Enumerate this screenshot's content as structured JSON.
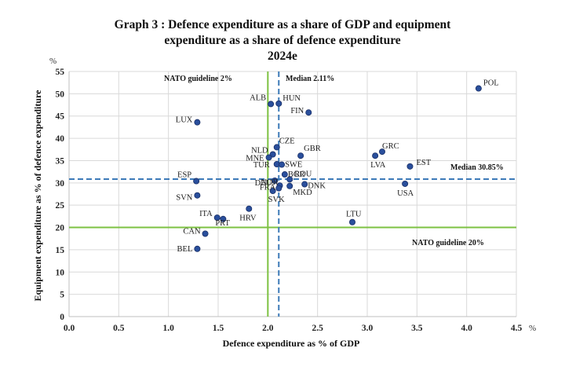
{
  "chart_data": {
    "type": "scatter",
    "title": "Graph 3 : Defence expenditure as a share of GDP and equipment expenditure as a share of defence expenditure",
    "title_lines": [
      "Graph 3 : Defence expenditure as a share of GDP and equipment",
      "expenditure as a share of defence expenditure",
      "2024e"
    ],
    "xlabel": "Defence expenditure as % of GDP",
    "ylabel": "Equipment expenditure as % of defence expenditure",
    "x_unit": "%",
    "y_unit": "%",
    "xlim": [
      0,
      4.5
    ],
    "ylim": [
      0,
      55
    ],
    "x_ticks": [
      "0.0",
      "0.5",
      "1.0",
      "1.5",
      "2.0",
      "2.5",
      "3.0",
      "3.5",
      "4.0",
      "4.5"
    ],
    "y_ticks": [
      "0",
      "5",
      "10",
      "15",
      "20",
      "25",
      "30",
      "35",
      "40",
      "45",
      "50",
      "55"
    ],
    "grid": true,
    "point_color": "#2a4f9c",
    "reference_lines": [
      {
        "axis": "x",
        "value": 2.0,
        "label": "NATO guideline 2%",
        "style": "solid",
        "color": "#7dc142"
      },
      {
        "axis": "y",
        "value": 20,
        "label": "NATO guideline 20%",
        "style": "solid",
        "color": "#7dc142"
      },
      {
        "axis": "x",
        "value": 2.11,
        "label": "Median 2.11%",
        "style": "dashed",
        "color": "#3d7ab8"
      },
      {
        "axis": "y",
        "value": 30.85,
        "label": "Median 30.85%",
        "style": "dashed",
        "color": "#3d7ab8"
      }
    ],
    "points": [
      {
        "label": "POL",
        "x": 4.12,
        "y": 51.2
      },
      {
        "label": "ALB",
        "x": 2.03,
        "y": 47.7
      },
      {
        "label": "HUN",
        "x": 2.11,
        "y": 47.8
      },
      {
        "label": "FIN",
        "x": 2.41,
        "y": 45.8
      },
      {
        "label": "LUX",
        "x": 1.29,
        "y": 43.6
      },
      {
        "label": "CZE",
        "x": 2.09,
        "y": 38.0
      },
      {
        "label": "NLD",
        "x": 2.05,
        "y": 36.4
      },
      {
        "label": "MNE",
        "x": 2.01,
        "y": 35.7
      },
      {
        "label": "GBR",
        "x": 2.33,
        "y": 36.1
      },
      {
        "label": "GRC",
        "x": 3.15,
        "y": 37.0
      },
      {
        "label": "LVA",
        "x": 3.08,
        "y": 36.1
      },
      {
        "label": "EST",
        "x": 3.43,
        "y": 33.7
      },
      {
        "label": "TUR",
        "x": 2.09,
        "y": 34.2
      },
      {
        "label": "SWE",
        "x": 2.14,
        "y": 34.1
      },
      {
        "label": "ESP",
        "x": 1.28,
        "y": 30.4
      },
      {
        "label": "NOR",
        "x": 2.12,
        "y": 29.4
      },
      {
        "label": "ROU",
        "x": 2.22,
        "y": 30.8
      },
      {
        "label": "BGR",
        "x": 2.17,
        "y": 31.9
      },
      {
        "label": "DEU",
        "x": 2.07,
        "y": 30.5
      },
      {
        "label": "USA",
        "x": 3.38,
        "y": 29.8
      },
      {
        "label": "DNK",
        "x": 2.37,
        "y": 29.7
      },
      {
        "label": "MKD",
        "x": 2.22,
        "y": 29.3
      },
      {
        "label": "FRA",
        "x": 2.11,
        "y": 28.8
      },
      {
        "label": "SVK",
        "x": 2.05,
        "y": 28.2
      },
      {
        "label": "SVN",
        "x": 1.29,
        "y": 27.2
      },
      {
        "label": "HRV",
        "x": 1.81,
        "y": 24.2
      },
      {
        "label": "ITA",
        "x": 1.49,
        "y": 22.2
      },
      {
        "label": "PRT",
        "x": 1.55,
        "y": 21.9
      },
      {
        "label": "LTU",
        "x": 2.85,
        "y": 21.2
      },
      {
        "label": "CAN",
        "x": 1.37,
        "y": 18.6
      },
      {
        "label": "BEL",
        "x": 1.29,
        "y": 15.2
      }
    ]
  }
}
